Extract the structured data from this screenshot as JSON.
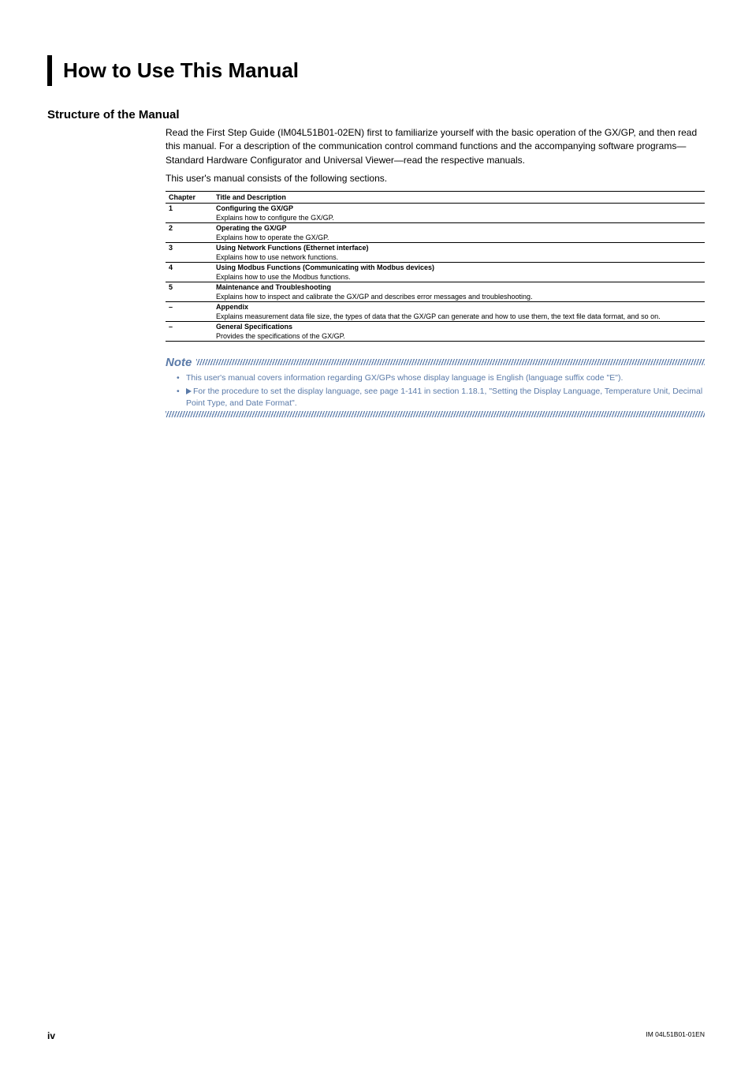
{
  "colors": {
    "text": "#000000",
    "accent_blue": "#5a7aa8",
    "background": "#ffffff",
    "border": "#000000"
  },
  "title": "How to Use This Manual",
  "section_heading": "Structure of the Manual",
  "intro_paragraph": "Read the First Step Guide (IM04L51B01-02EN) first to familiarize yourself with the basic operation of the GX/GP, and then read this manual. For a description of the communication control command functions and the accompanying software programs—Standard Hardware Configurator and Universal Viewer—read the respective manuals.",
  "intro_line2": "This user's manual consists of the following sections.",
  "table": {
    "header_chapter": "Chapter",
    "header_title": "Title and Description",
    "rows": [
      {
        "num": "1",
        "title": "Configuring the GX/GP",
        "desc": "Explains how to configure the GX/GP."
      },
      {
        "num": "2",
        "title": "Operating the GX/GP",
        "desc": "Explains how to operate the GX/GP."
      },
      {
        "num": "3",
        "title": "Using Network Functions (Ethernet interface)",
        "desc": "Explains how to use network functions."
      },
      {
        "num": "4",
        "title": "Using Modbus Functions (Communicating with Modbus devices)",
        "desc": "Explains how to use the Modbus functions."
      },
      {
        "num": "5",
        "title": "Maintenance and Troubleshooting",
        "desc": "Explains how to inspect and calibrate the GX/GP and describes error messages and troubleshooting."
      },
      {
        "num": "–",
        "title": "Appendix",
        "desc": "Explains measurement data file size, the types of data that the GX/GP can generate and how to use them, the text file data format, and so on."
      },
      {
        "num": "–",
        "title": "General Specifications",
        "desc": "Provides the specifications of the GX/GP."
      }
    ]
  },
  "note": {
    "label": "Note",
    "item1": "This user's manual covers information regarding GX/GPs whose display language is English (language suffix code \"E\").",
    "item2_a": "For the procedure to set the display language, see page 1-141 in section 1.18.1, \"Setting the Display Language, Temperature Unit, Decimal Point Type, and Date Format\"."
  },
  "footer": {
    "page": "iv",
    "doc_id": "IM 04L51B01-01EN"
  }
}
